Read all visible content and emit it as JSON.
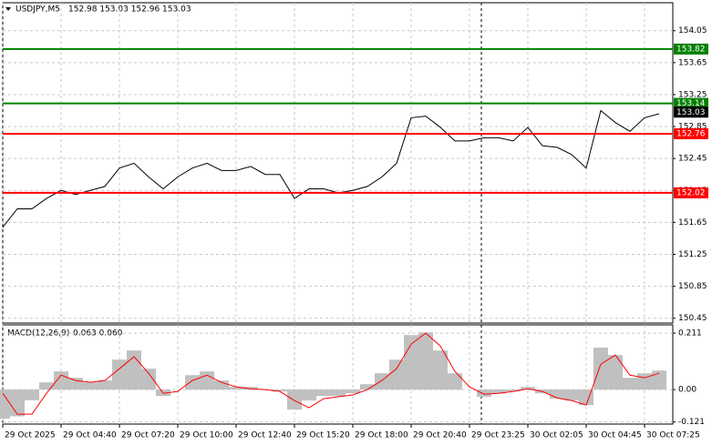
{
  "chart_data": [
    {
      "type": "line",
      "title": "USDJPY,M5",
      "subtitle": "152.98 153.03 152.96 153.03",
      "color": "#000000",
      "categories": [
        "29 Oct 2025",
        null,
        null,
        null,
        "29 Oct 04:40",
        null,
        null,
        null,
        "29 Oct 07:20",
        null,
        null,
        null,
        "29 Oct 10:00",
        null,
        null,
        null,
        "29 Oct 12:40",
        null,
        null,
        null,
        "29 Oct 15:20",
        null,
        null,
        null,
        "29 Oct 18:00",
        null,
        null,
        null,
        "29 Oct 20:40",
        null,
        null,
        null,
        "29 Oct 23:25",
        null,
        null,
        null,
        "30 Oct 02:05",
        null,
        null,
        null,
        "30 Oct 04:45",
        null,
        null,
        null,
        "30 Oct 07:25",
        null
      ],
      "values": [
        151.59,
        151.82,
        151.82,
        151.95,
        152.05,
        152.0,
        152.05,
        152.1,
        152.33,
        152.39,
        152.22,
        152.07,
        152.22,
        152.33,
        152.39,
        152.3,
        152.3,
        152.35,
        152.25,
        152.25,
        151.95,
        152.07,
        152.07,
        152.02,
        152.05,
        152.1,
        152.22,
        152.39,
        152.96,
        152.98,
        152.84,
        152.67,
        152.67,
        152.71,
        152.71,
        152.67,
        152.84,
        152.61,
        152.59,
        152.5,
        152.33,
        153.05,
        152.9,
        152.79,
        152.96,
        153.01
      ],
      "ylim": [
        150.39,
        154.4
      ],
      "yticks": [
        154.05,
        153.65,
        153.25,
        152.85,
        152.45,
        152.05,
        151.65,
        151.25,
        150.85,
        150.45
      ],
      "grid": true,
      "levels": [
        {
          "value": 153.82,
          "color": "#008000"
        },
        {
          "value": 153.14,
          "color": "#008000"
        },
        {
          "value": 152.76,
          "color": "#ff0000"
        },
        {
          "value": 152.02,
          "color": "#ff0000"
        }
      ],
      "current": {
        "value": 153.03,
        "color": "#000000"
      }
    },
    {
      "type": "macd",
      "title": "MACD(12,26,9)",
      "subtitle": "0.063 0.060",
      "series": [
        {
          "color": "#c0c0c0",
          "values": [
            -0.109,
            -0.1,
            -0.04,
            0.027,
            0.068,
            0.044,
            0.027,
            0.034,
            0.112,
            0.146,
            0.078,
            -0.024,
            0,
            0.054,
            0.068,
            0.034,
            0.01,
            0.01,
            0,
            -0.007,
            -0.075,
            -0.041,
            -0.024,
            -0.024,
            -0.014,
            0.02,
            0.061,
            0.112,
            0.204,
            0.214,
            0.146,
            0.061,
            0,
            -0.027,
            -0.014,
            -0.007,
            0.01,
            -0.014,
            -0.034,
            -0.041,
            -0.058,
            0.157,
            0.129,
            0.044,
            0.061,
            0.071
          ]
        },
        {
          "color": "#ff0000",
          "values": [
            -0.014,
            -0.092,
            -0.092,
            -0.014,
            0.054,
            0.034,
            0.027,
            0.034,
            0.078,
            0.123,
            0.061,
            -0.014,
            -0.007,
            0.034,
            0.054,
            0.027,
            0.01,
            0.003,
            0,
            -0.007,
            -0.041,
            -0.068,
            -0.034,
            -0.027,
            -0.02,
            0,
            0.034,
            0.078,
            0.17,
            0.211,
            0.163,
            0.068,
            0.01,
            -0.017,
            -0.014,
            -0.007,
            0.003,
            -0.007,
            -0.031,
            -0.041,
            -0.058,
            0.095,
            0.129,
            0.054,
            0.044,
            0.061
          ]
        }
      ],
      "ylim": [
        -0.129,
        0.242
      ],
      "yticks": [
        0.211,
        {
          "value": 0,
          "label": "0.00"
        },
        -0.121
      ],
      "grid": true
    }
  ]
}
